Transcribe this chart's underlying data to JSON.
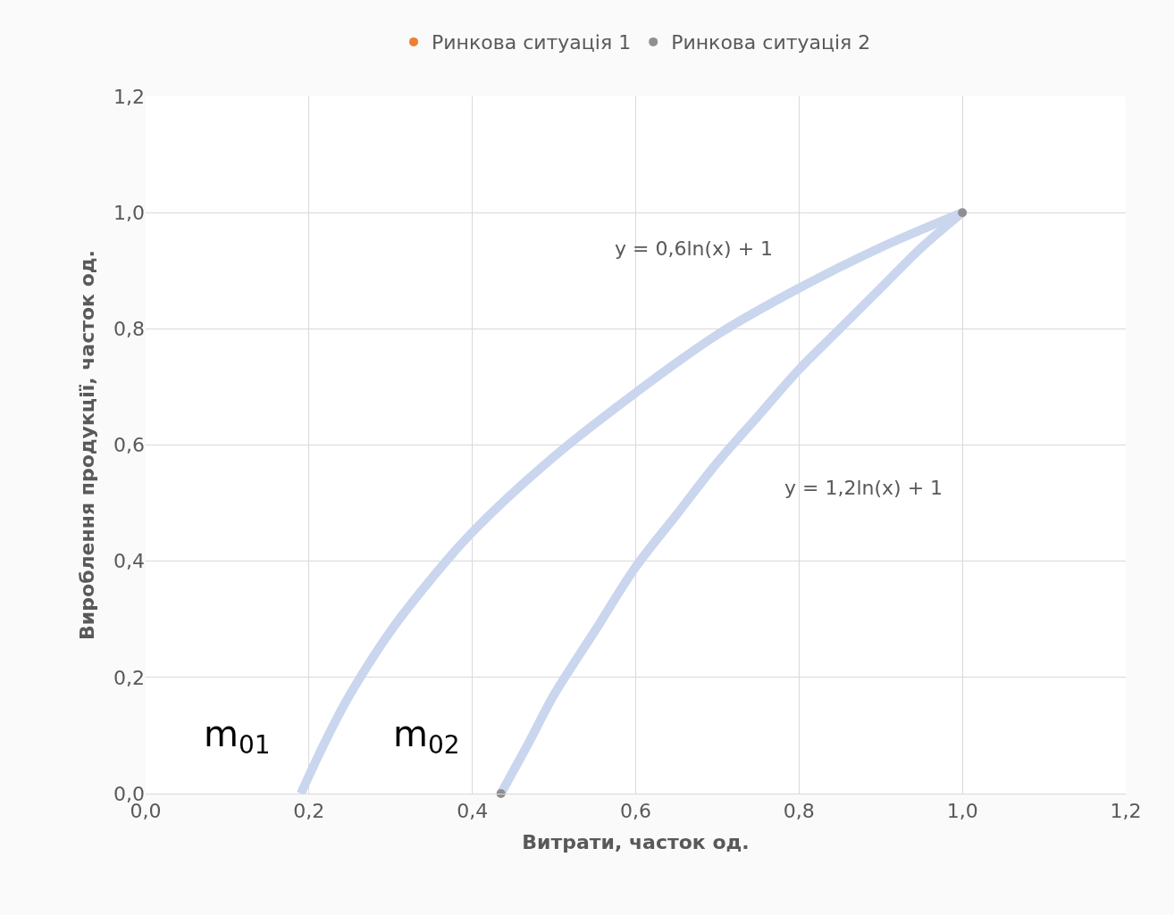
{
  "chart_data": {
    "type": "scatter",
    "xlabel": "Витрати, часток од.",
    "ylabel": "Вироблення продукції, часток од.",
    "xlim": [
      0,
      1.2
    ],
    "ylim": [
      0,
      1.2
    ],
    "xticks": [
      {
        "value": 0,
        "label": "0,0"
      },
      {
        "value": 0.2,
        "label": "0,2"
      },
      {
        "value": 0.4,
        "label": "0,4"
      },
      {
        "value": 0.6,
        "label": "0,6"
      },
      {
        "value": 0.8,
        "label": "0,8"
      },
      {
        "value": 1.0,
        "label": "1,0"
      },
      {
        "value": 1.2,
        "label": "1,2"
      }
    ],
    "yticks": [
      {
        "value": 0,
        "label": "0,0"
      },
      {
        "value": 0.2,
        "label": "0,2"
      },
      {
        "value": 0.4,
        "label": "0,4"
      },
      {
        "value": 0.6,
        "label": "0,6"
      },
      {
        "value": 0.8,
        "label": "0,8"
      },
      {
        "value": 1.0,
        "label": "1,0"
      },
      {
        "value": 1.2,
        "label": "1,2"
      }
    ],
    "grid": true,
    "legend": "top",
    "marker": "circle",
    "series": [
      {
        "type": "line",
        "marker": "none",
        "color": "#c9d6ee",
        "x": [
          0.19,
          0.22,
          0.25,
          0.3,
          0.35,
          0.4,
          0.5,
          0.6,
          0.7,
          0.8,
          0.9,
          1.0
        ],
        "values": [
          0.0,
          0.09,
          0.17,
          0.28,
          0.37,
          0.45,
          0.58,
          0.69,
          0.79,
          0.87,
          0.94,
          1.0
        ]
      },
      {
        "type": "line",
        "marker": "none",
        "color": "#c9d6ee",
        "x": [
          0.435,
          0.47,
          0.5,
          0.55,
          0.6,
          0.65,
          0.7,
          0.75,
          0.8,
          0.85,
          0.9,
          0.95,
          1.0
        ],
        "values": [
          0.0,
          0.09,
          0.17,
          0.28,
          0.39,
          0.48,
          0.57,
          0.65,
          0.73,
          0.8,
          0.87,
          0.94,
          1.0
        ]
      },
      {
        "name": "Ринкова ситуація 1",
        "color": "#ed7d31",
        "values": [
          null
        ]
      },
      {
        "name": "Ринкова ситуація 2",
        "color": "#8f8f8f",
        "x": [
          0.435,
          1.0
        ],
        "values": [
          0.0,
          1.0
        ]
      }
    ],
    "annotations": [
      "y = 0,6ln(x) + 1",
      "y = 1,2ln(x) + 1",
      "m$_{01}$",
      "m$_{02}$"
    ]
  }
}
